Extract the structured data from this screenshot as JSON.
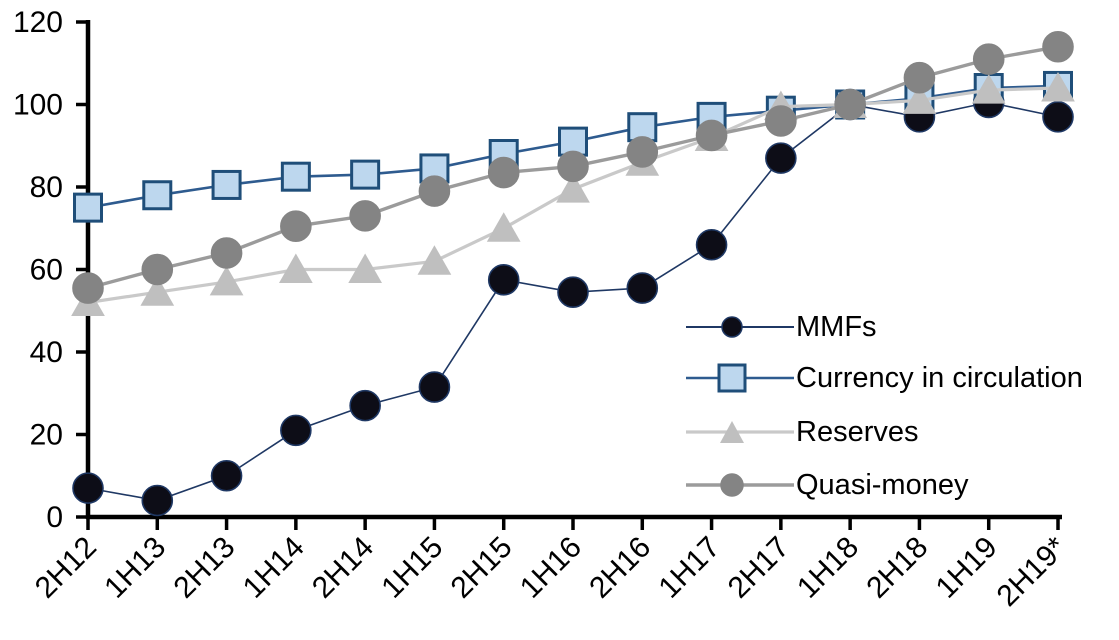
{
  "background_color": "#FFFFFF",
  "axis_color": "#000000",
  "chart_data": {
    "type": "line",
    "title": "",
    "xlabel": "",
    "ylabel": "",
    "ylim": [
      0,
      120
    ],
    "yticks": [
      0,
      20,
      40,
      60,
      80,
      100,
      120
    ],
    "grid": false,
    "legend_position": "inside-right",
    "categories": [
      "2H12",
      "1H13",
      "2H13",
      "1H14",
      "2H14",
      "1H15",
      "2H15",
      "1H16",
      "2H16",
      "1H17",
      "2H17",
      "1H18",
      "2H18",
      "1H19",
      "2H19*"
    ],
    "series": [
      {
        "name": "MMFs",
        "marker": "circle",
        "values": [
          7,
          4,
          10,
          21,
          27,
          31.5,
          57.5,
          54.5,
          55.5,
          66,
          87,
          100,
          97,
          100.5,
          97
        ],
        "line_color": "#1F3864",
        "marker_fill": "#0D0D17",
        "marker_stroke": "#1F3864",
        "line_width": 1.6
      },
      {
        "name": "Currency in circulation",
        "marker": "square",
        "values": [
          75,
          78,
          80.5,
          82.5,
          83,
          84.5,
          88,
          91,
          94.5,
          97,
          98.5,
          100,
          101.5,
          104,
          104.5
        ],
        "line_color": "#2E5B8F",
        "marker_fill": "#BDD7EE",
        "marker_stroke": "#1F4E79",
        "line_width": 2.6
      },
      {
        "name": "Reserves",
        "marker": "triangle",
        "values": [
          52,
          54.5,
          57,
          60,
          60,
          62,
          70,
          79.5,
          86,
          92,
          99.5,
          100,
          101,
          103.5,
          104
        ],
        "line_color": "#C9C9C9",
        "marker_fill": "#BFBFBF",
        "marker_stroke": "#BFBFBF",
        "line_width": 3.2
      },
      {
        "name": "Quasi-money",
        "marker": "circle",
        "values": [
          55.5,
          60,
          64,
          70.5,
          73,
          79,
          83.5,
          85,
          88.5,
          92.5,
          96,
          100,
          106.5,
          111,
          114
        ],
        "line_color": "#9B9B9B",
        "marker_fill": "#848484",
        "marker_stroke": "#848484",
        "line_width": 3.4
      }
    ]
  }
}
